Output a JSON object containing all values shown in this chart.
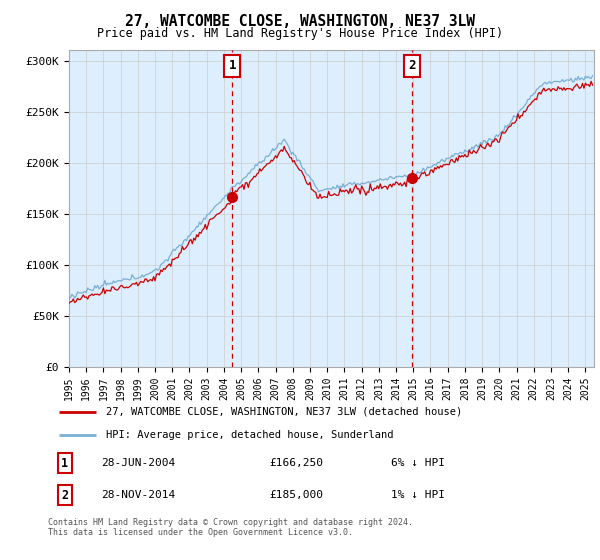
{
  "title": "27, WATCOMBE CLOSE, WASHINGTON, NE37 3LW",
  "subtitle": "Price paid vs. HM Land Registry's House Price Index (HPI)",
  "legend_line1": "27, WATCOMBE CLOSE, WASHINGTON, NE37 3LW (detached house)",
  "legend_line2": "HPI: Average price, detached house, Sunderland",
  "footnote": "Contains HM Land Registry data © Crown copyright and database right 2024.\nThis data is licensed under the Open Government Licence v3.0.",
  "annotation1_label": "1",
  "annotation1_date": "28-JUN-2004",
  "annotation1_price": "£166,250",
  "annotation1_hpi": "6% ↓ HPI",
  "annotation2_label": "2",
  "annotation2_date": "28-NOV-2014",
  "annotation2_price": "£185,000",
  "annotation2_hpi": "1% ↓ HPI",
  "sale1_x": 2004.49,
  "sale1_y": 166250,
  "sale2_x": 2014.91,
  "sale2_y": 185000,
  "red_color": "#cc0000",
  "blue_color": "#7aafd4",
  "shading_color": "#ddeeff",
  "background_color": "#ffffff",
  "grid_color": "#cccccc",
  "ylim": [
    0,
    310000
  ],
  "xlim_start": 1995.0,
  "xlim_end": 2025.5
}
